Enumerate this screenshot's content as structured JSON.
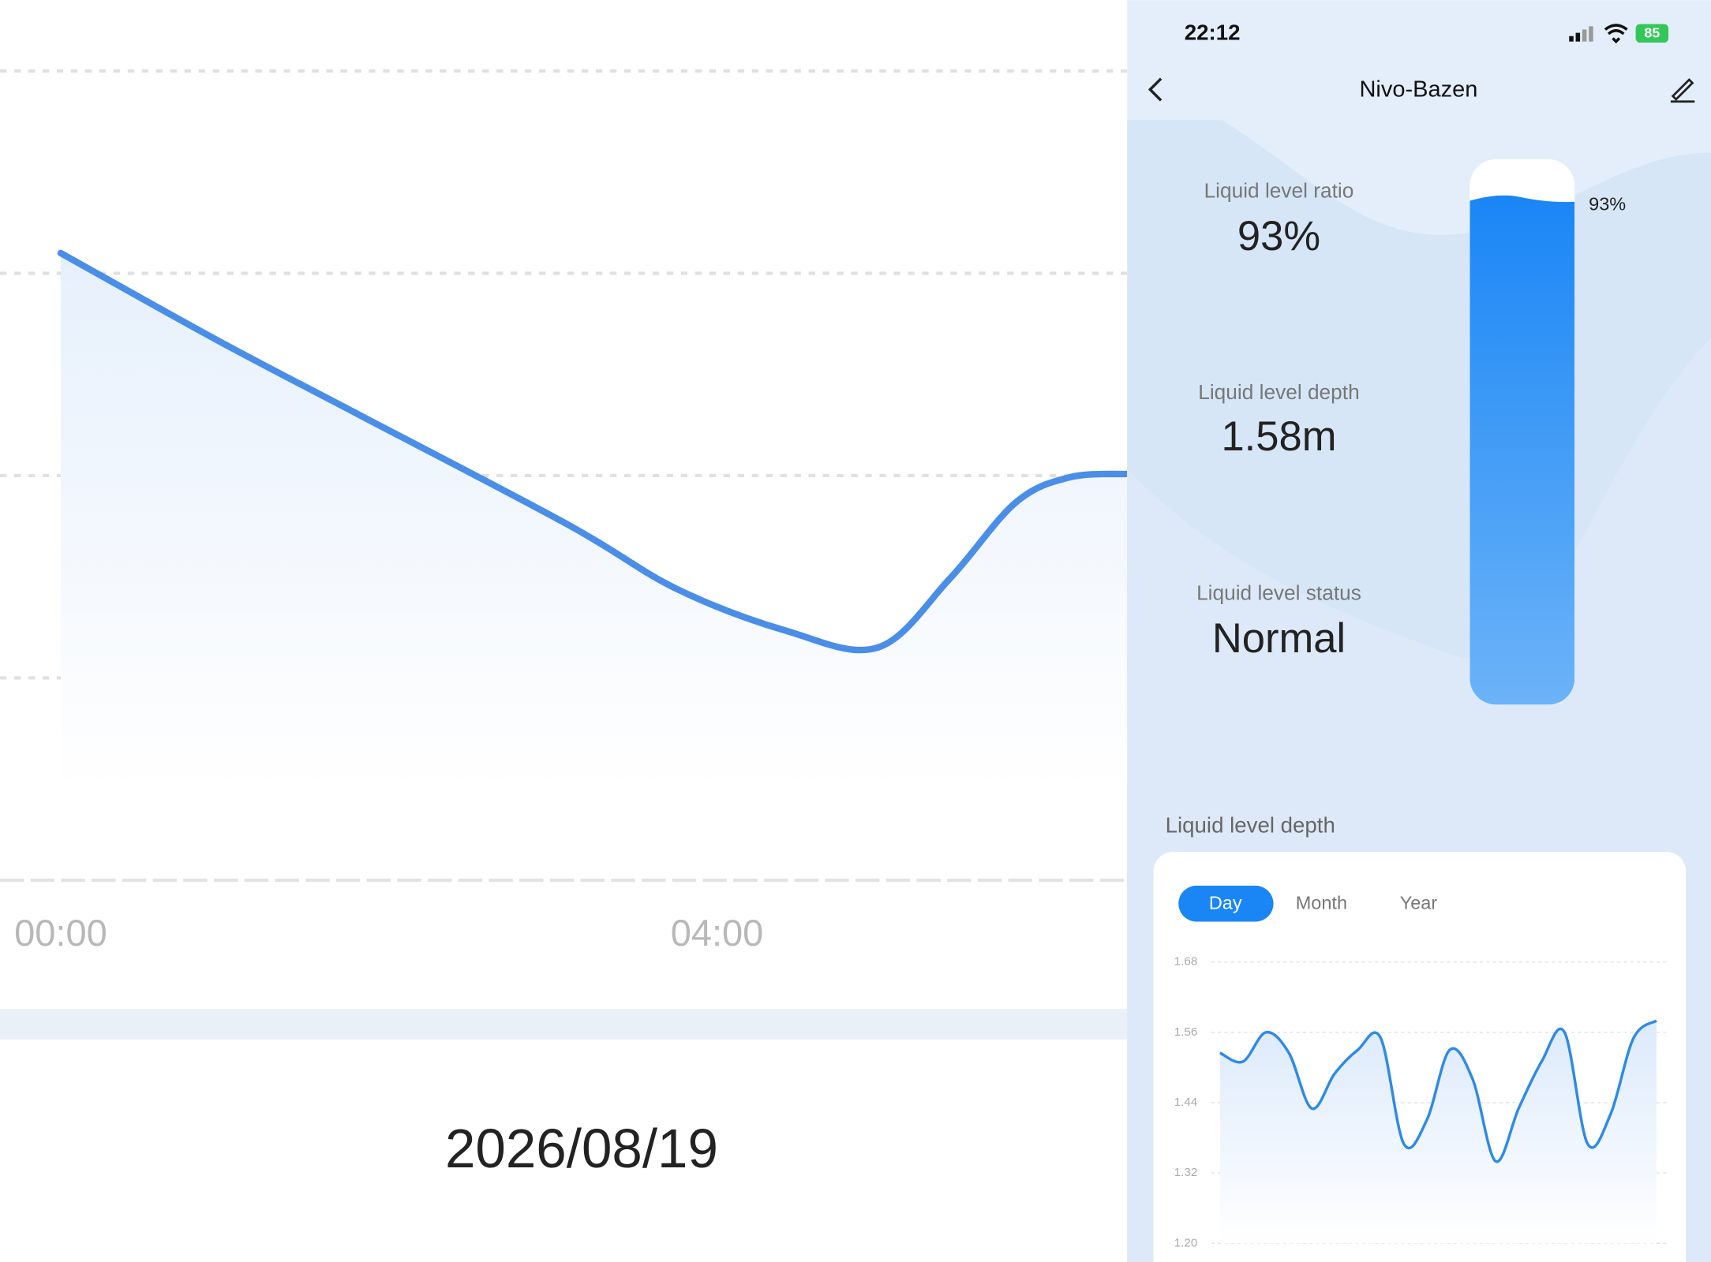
{
  "status_bar": {
    "time": "22:12",
    "battery": "85"
  },
  "header": {
    "title": "Nivo-Bazen"
  },
  "gauge": {
    "ratio_label": "Liquid level ratio",
    "ratio_value": "93%",
    "depth_label": "Liquid level depth",
    "depth_value": "1.58m",
    "status_label": "Liquid level status",
    "status_value": "Normal"
  },
  "tank": {
    "value": 93,
    "value_label": "93%"
  },
  "section_title": "Liquid level depth",
  "tabs": [
    "Day",
    "Month",
    "Year"
  ],
  "date": "2026/08/19",
  "chart_data": [
    {
      "type": "line",
      "x": [
        0,
        0.96,
        1.82,
        3.09,
        3.75,
        4.42,
        4.98,
        5.42,
        5.82,
        6.15,
        6.5
      ],
      "series": [
        {
          "values": [
            1.572,
            1.52,
            1.476,
            1.411,
            1.373,
            1.348,
            1.338,
            1.379,
            1.424,
            1.439,
            1.441
          ],
          "color": "#4a8ee8"
        }
      ],
      "xlim": [
        -0.37,
        6.5
      ],
      "xticks": [
        {
          "value": 0,
          "label": "00:00"
        },
        {
          "value": 4,
          "label": "04:00"
        }
      ],
      "ylim": [
        1.2,
        1.68
      ],
      "yticks": [
        1.2,
        1.32,
        1.44,
        1.56,
        1.68
      ]
    },
    {
      "type": "line",
      "values": [
        1.525,
        1.51,
        1.56,
        1.525,
        1.43,
        1.49,
        1.53,
        1.55,
        1.37,
        1.41,
        1.53,
        1.48,
        1.34,
        1.43,
        1.51,
        1.56,
        1.37,
        1.42,
        1.55,
        1.58
      ],
      "color": "#2f8ae6",
      "ylim": [
        1.2,
        1.68
      ],
      "yticks": [
        {
          "value": 1.2,
          "label": "1.20"
        },
        1.32,
        1.44,
        1.56,
        1.68
      ]
    }
  ]
}
